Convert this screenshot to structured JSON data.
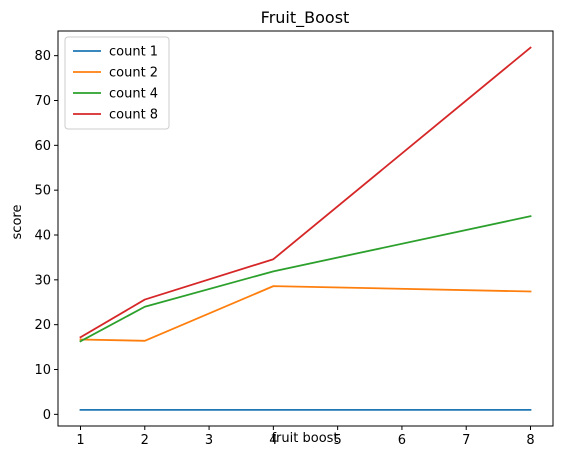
{
  "chart_data": {
    "type": "line",
    "title": "Fruit_Boost",
    "xlabel": "fruit boost",
    "ylabel": "score",
    "x": [
      1,
      2,
      4,
      8
    ],
    "xlim": [
      0.65,
      8.35
    ],
    "ylim": [
      -2.6,
      85.5
    ],
    "xticks": [
      1,
      2,
      3,
      4,
      5,
      6,
      7,
      8
    ],
    "yticks": [
      0,
      10,
      20,
      30,
      40,
      50,
      60,
      70,
      80
    ],
    "grid": false,
    "legend_position": "top-left",
    "series": [
      {
        "name": "count 1",
        "color": "#1f77b4",
        "values": [
          1.0,
          1.0,
          1.0,
          1.0
        ]
      },
      {
        "name": "count 2",
        "color": "#ff7f0e",
        "values": [
          16.7,
          16.4,
          28.6,
          27.4
        ]
      },
      {
        "name": "count 4",
        "color": "#2ca02c",
        "values": [
          16.3,
          24.0,
          31.9,
          44.2
        ]
      },
      {
        "name": "count 8",
        "color": "#d62728",
        "values": [
          17.2,
          25.6,
          34.6,
          81.8
        ]
      }
    ]
  }
}
